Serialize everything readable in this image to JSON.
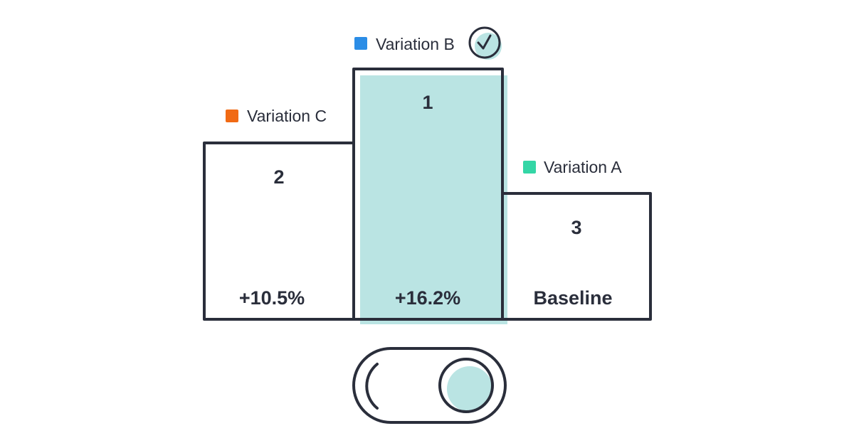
{
  "colors": {
    "outline": "#2a2e3b",
    "highlight_fill": "#bae4e3",
    "background": "#ffffff"
  },
  "podium": [
    {
      "id": "variation-c",
      "name": "Variation C",
      "swatch_color": "#f16a14",
      "rank": "2",
      "value_label": "+10.5%",
      "lift_percent": 10.5,
      "winner": false
    },
    {
      "id": "variation-b",
      "name": "Variation B",
      "swatch_color": "#2b8de6",
      "rank": "1",
      "value_label": "+16.2%",
      "lift_percent": 16.2,
      "winner": true,
      "badge_icon": "check-circle-icon"
    },
    {
      "id": "variation-a",
      "name": "Variation A",
      "swatch_color": "#34d6a6",
      "rank": "3",
      "value_label": "Baseline",
      "lift_percent": 0,
      "winner": false
    }
  ],
  "toggle": {
    "state": "on",
    "icon": "toggle-switch-icon"
  }
}
